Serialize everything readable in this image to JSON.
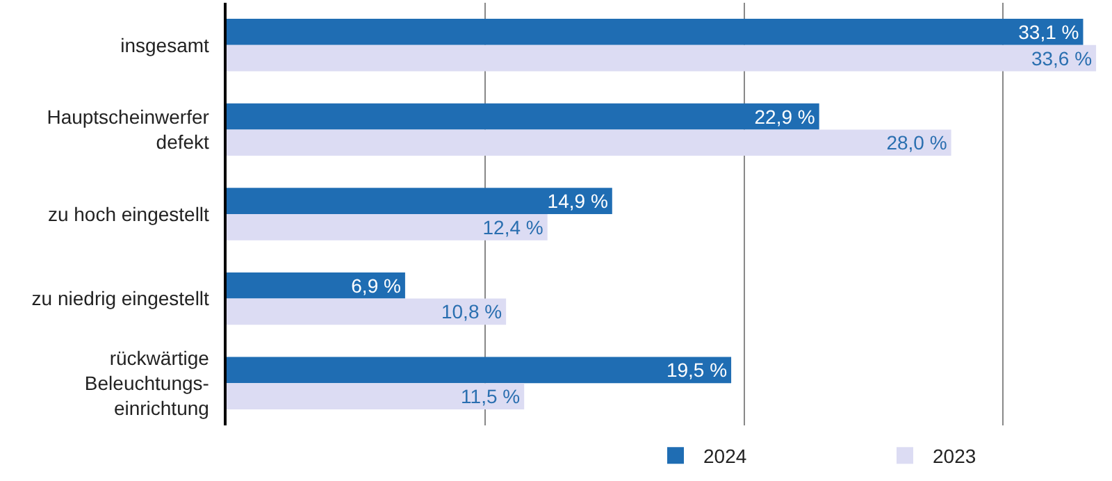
{
  "chart_data": {
    "type": "bar",
    "orientation": "horizontal",
    "categories": [
      "insgesamt",
      "Hauptscheinwerfer\ndefekt",
      "zu hoch eingestellt",
      "zu niedrig eingestellt",
      "rückwärtige\nBeleuchtungs-\neinrichtung"
    ],
    "series": [
      {
        "name": "2024",
        "color": "#1f6db3",
        "values": [
          33.1,
          22.9,
          14.9,
          6.9,
          19.5
        ],
        "value_labels": [
          "33,1 %",
          "22,9 %",
          "14,9 %",
          "6,9 %",
          "19,5 %"
        ]
      },
      {
        "name": "2023",
        "color": "#dcdcf3",
        "values": [
          33.6,
          28.0,
          12.4,
          10.8,
          11.5
        ],
        "value_labels": [
          "33,6 %",
          "28,0 %",
          "12,4 %",
          "10,8 %",
          "11,5 %"
        ]
      }
    ],
    "xlim": [
      0,
      34
    ],
    "xticks": [
      {
        "value": 0,
        "label": null
      },
      {
        "value": 10,
        "label": null
      },
      {
        "value": 20,
        "label": null
      },
      {
        "value": 30,
        "label": null
      }
    ],
    "tick_labels": "y",
    "grid": "x",
    "legend": "bottom right"
  }
}
